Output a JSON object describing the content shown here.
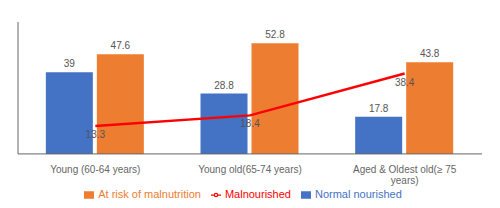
{
  "chart_data": {
    "type": "bar",
    "categories": [
      "Young (60-64 years)",
      "Young old(65-74 years)",
      "Aged & Oldest old(≥ 75\nyears)"
    ],
    "series": [
      {
        "name": "Normal nourished",
        "type": "bar",
        "color": "#4472C4",
        "values": [
          39,
          28.8,
          17.8
        ]
      },
      {
        "name": "At risk of malnutrition",
        "type": "bar",
        "color": "#ED7D31",
        "values": [
          47.6,
          52.8,
          43.8
        ]
      },
      {
        "name": "Malnourished",
        "type": "line",
        "color": "#FF0000",
        "values": [
          13.3,
          18.4,
          38.4
        ]
      }
    ],
    "ylim": [
      0,
      63
    ],
    "grid": false,
    "legend": "bottom",
    "data_labels": true,
    "tick_labels": "x"
  }
}
